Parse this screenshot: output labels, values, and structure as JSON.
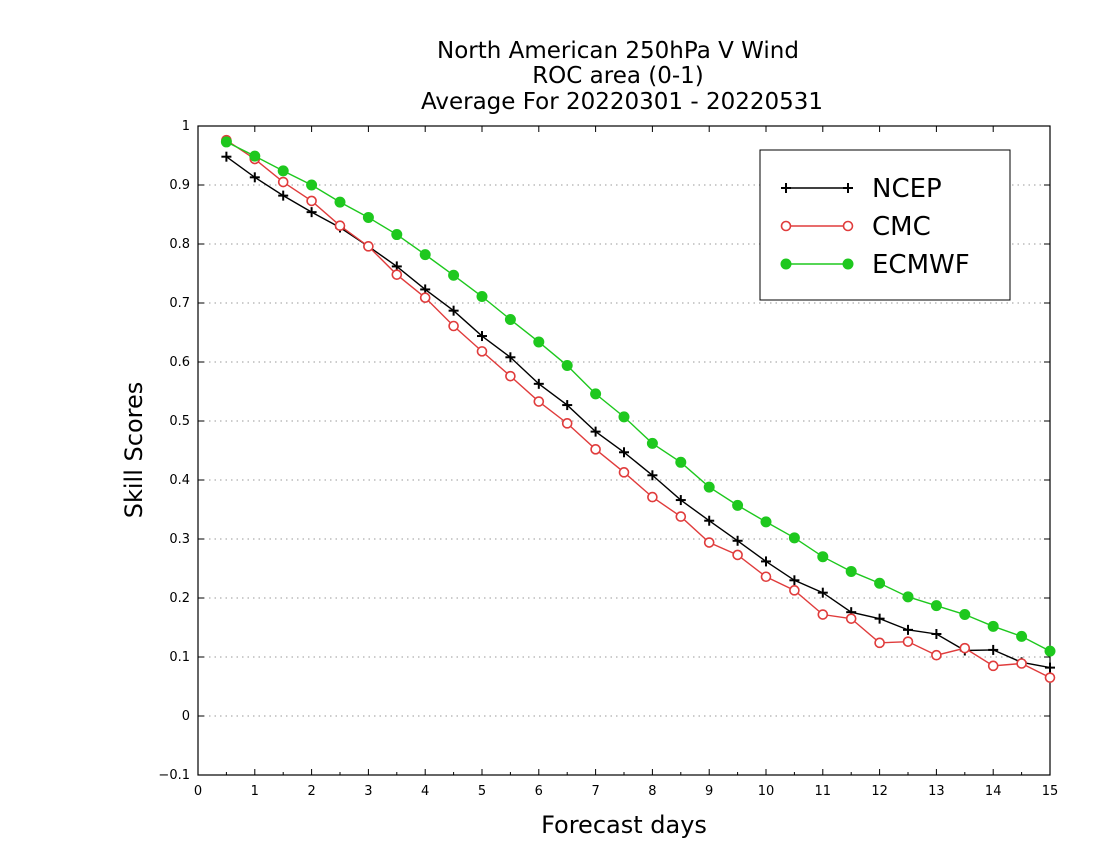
{
  "chart_data": {
    "type": "line",
    "title": [
      "North American 250hPa V Wind",
      "ROC area (0-1)",
      "Average For 20220301 - 20220531"
    ],
    "xlabel": "Forecast days",
    "ylabel": "Skill Scores",
    "xlim": [
      0,
      15
    ],
    "ylim": [
      -0.1,
      1
    ],
    "x_ticks": [
      0,
      1,
      2,
      3,
      4,
      5,
      6,
      7,
      8,
      9,
      10,
      11,
      12,
      13,
      14,
      15
    ],
    "x_tick_labels": [
      "0",
      "1",
      "2",
      "3",
      "4",
      "5",
      "6",
      "7",
      "8",
      "9",
      "10",
      "11",
      "12",
      "13",
      "14",
      "15"
    ],
    "y_ticks": [
      -0.1,
      0,
      0.1,
      0.2,
      0.3,
      0.4,
      0.5,
      0.6,
      0.7,
      0.8,
      0.9,
      1
    ],
    "y_tick_labels": [
      "−0.1",
      "0",
      "0.1",
      "0.2",
      "0.3",
      "0.4",
      "0.5",
      "0.6",
      "0.7",
      "0.8",
      "0.9",
      "1"
    ],
    "grid": "horizontal dotted",
    "legend_position": "top-right",
    "x": [
      0.5,
      1,
      1.5,
      2,
      2.5,
      3,
      3.5,
      4,
      4.5,
      5,
      5.5,
      6,
      6.5,
      7,
      7.5,
      8,
      8.5,
      9,
      9.5,
      10,
      10.5,
      11,
      11.5,
      12,
      12.5,
      13,
      13.5,
      14,
      14.5,
      15
    ],
    "series": [
      {
        "name": "NCEP",
        "color": "#000000",
        "marker": "plus",
        "values": [
          0.948,
          0.913,
          0.882,
          0.854,
          0.828,
          0.796,
          0.762,
          0.723,
          0.687,
          0.644,
          0.608,
          0.563,
          0.527,
          0.482,
          0.447,
          0.408,
          0.366,
          0.331,
          0.297,
          0.262,
          0.23,
          0.209,
          0.176,
          0.165,
          0.146,
          0.139,
          0.111,
          0.112,
          0.091,
          0.082
        ]
      },
      {
        "name": "CMC",
        "color": "#e03c3c",
        "marker": "open-circle",
        "values": [
          0.976,
          0.944,
          0.905,
          0.873,
          0.831,
          0.796,
          0.748,
          0.709,
          0.661,
          0.618,
          0.576,
          0.533,
          0.496,
          0.452,
          0.413,
          0.371,
          0.338,
          0.294,
          0.273,
          0.236,
          0.213,
          0.172,
          0.165,
          0.124,
          0.126,
          0.103,
          0.115,
          0.085,
          0.089,
          0.065
        ]
      },
      {
        "name": "ECMWF",
        "color": "#1ec81e",
        "marker": "filled-circle",
        "values": [
          0.973,
          0.949,
          0.924,
          0.9,
          0.871,
          0.845,
          0.816,
          0.782,
          0.747,
          0.711,
          0.672,
          0.634,
          0.594,
          0.546,
          0.507,
          0.462,
          0.43,
          0.388,
          0.357,
          0.329,
          0.302,
          0.27,
          0.245,
          0.225,
          0.202,
          0.187,
          0.172,
          0.152,
          0.135,
          0.11
        ]
      }
    ]
  }
}
